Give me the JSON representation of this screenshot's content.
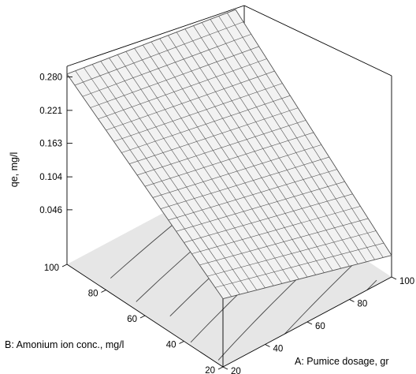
{
  "chart_data": {
    "type": "surface3d",
    "title": "",
    "zlabel": "qe, mg/l",
    "xlabel": "A: Pumice dosage, gr",
    "ylabel": "B: Amonium ion conc., mg/l",
    "z_ticks": [
      "0.280",
      "0.221",
      "0.163",
      "0.104",
      "0.046"
    ],
    "x_ticks": [
      "20",
      "40",
      "60",
      "80",
      "100"
    ],
    "y_ticks": [
      "20",
      "40",
      "60",
      "80",
      "100"
    ],
    "x_range": [
      20,
      100
    ],
    "y_range": [
      20,
      100
    ],
    "z_range": [
      -0.05,
      0.3
    ],
    "surface_corners": [
      {
        "A": 20,
        "B": 100,
        "qe": 0.285
      },
      {
        "A": 100,
        "B": 100,
        "qe": 0.24
      },
      {
        "A": 20,
        "B": 20,
        "qe": 0.07
      },
      {
        "A": 100,
        "B": 20,
        "qe": -0.012
      }
    ],
    "mesh_divisions": 20,
    "surface_color": "#f2f2f2",
    "floor_color": "#e6e6e6"
  }
}
